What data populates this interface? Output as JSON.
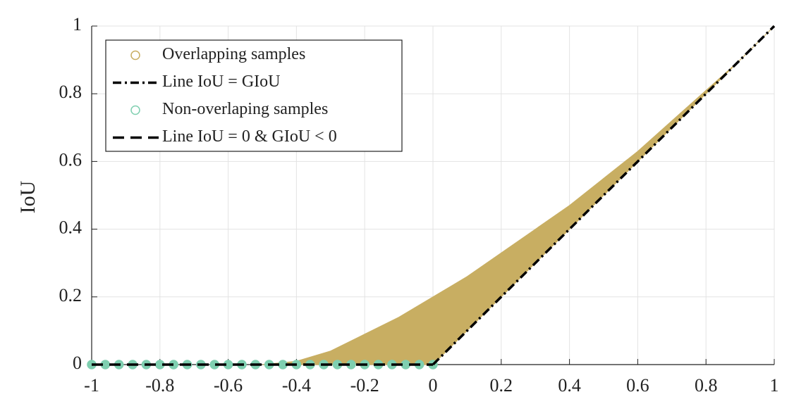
{
  "chart_data": {
    "type": "scatter",
    "y_label": "IoU",
    "xlim": [
      -1,
      1
    ],
    "ylim": [
      0,
      1
    ],
    "xticks": [
      -1,
      -0.8,
      -0.6,
      -0.4,
      -0.2,
      0,
      0.2,
      0.4,
      0.6,
      0.8,
      1
    ],
    "yticks": [
      0,
      0.2,
      0.4,
      0.6,
      0.8,
      1
    ],
    "grid": true,
    "legend": "upper left",
    "series": [
      {
        "name": "Overlapping samples",
        "color": "#c8ae62",
        "kind": "band",
        "marker": "circle",
        "x": [
          -0.5,
          -0.4,
          -0.3,
          -0.2,
          -0.1,
          0,
          0.1,
          0.2,
          0.3,
          0.4,
          0.5,
          0.6,
          0.7,
          0.8,
          0.9,
          1
        ],
        "upper": [
          0,
          0.01,
          0.04,
          0.09,
          0.14,
          0.2,
          0.26,
          0.33,
          0.4,
          0.47,
          0.55,
          0.63,
          0.72,
          0.81,
          0.9,
          1
        ],
        "lower": [
          0,
          0,
          0,
          0,
          0,
          0,
          0.1,
          0.2,
          0.3,
          0.4,
          0.5,
          0.6,
          0.7,
          0.8,
          0.9,
          1
        ]
      },
      {
        "name": "Line IoU = GIoU",
        "color": "#000000",
        "kind": "line",
        "dash": "dashdot",
        "x": [
          0,
          1
        ],
        "y": [
          0,
          1
        ]
      },
      {
        "name": "Non-overlaping samples",
        "color": "#7fcfb0",
        "kind": "scatter",
        "marker": "circle",
        "x": [
          -1,
          -0.96,
          -0.92,
          -0.88,
          -0.84,
          -0.8,
          -0.76,
          -0.72,
          -0.68,
          -0.64,
          -0.6,
          -0.56,
          -0.52,
          -0.48,
          -0.44,
          -0.4,
          -0.36,
          -0.32,
          -0.28,
          -0.24,
          -0.2,
          -0.16,
          -0.12,
          -0.08,
          -0.04,
          0
        ],
        "y": [
          0,
          0,
          0,
          0,
          0,
          0,
          0,
          0,
          0,
          0,
          0,
          0,
          0,
          0,
          0,
          0,
          0,
          0,
          0,
          0,
          0,
          0,
          0,
          0,
          0,
          0
        ]
      },
      {
        "name": "Line IoU = 0 & GIoU < 0",
        "color": "#000000",
        "kind": "line",
        "dash": "dashed",
        "x": [
          -1,
          0
        ],
        "y": [
          0,
          0
        ]
      }
    ]
  }
}
